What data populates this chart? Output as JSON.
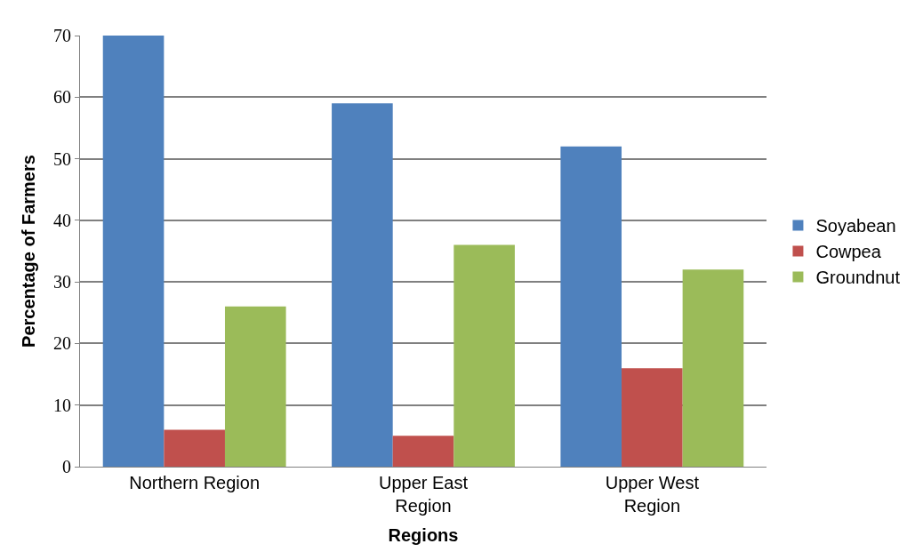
{
  "chart_data": {
    "type": "bar",
    "xlabel": "Regions",
    "ylabel": "Percentage of Farmers",
    "categories": [
      "Northern Region",
      "Upper East Region",
      "Upper West Region"
    ],
    "series": [
      {
        "name": "Soyabean",
        "color": "#4f81bd",
        "values": [
          70,
          59,
          52
        ]
      },
      {
        "name": "Cowpea",
        "color": "#c0504d",
        "values": [
          6,
          5,
          16
        ]
      },
      {
        "name": "Groundnut",
        "color": "#9bbb59",
        "values": [
          26,
          36,
          32
        ]
      }
    ],
    "ylim": [
      0,
      70
    ],
    "yticks": [
      0,
      10,
      20,
      30,
      40,
      50,
      60,
      70
    ],
    "grid": "y",
    "legend": "right"
  }
}
